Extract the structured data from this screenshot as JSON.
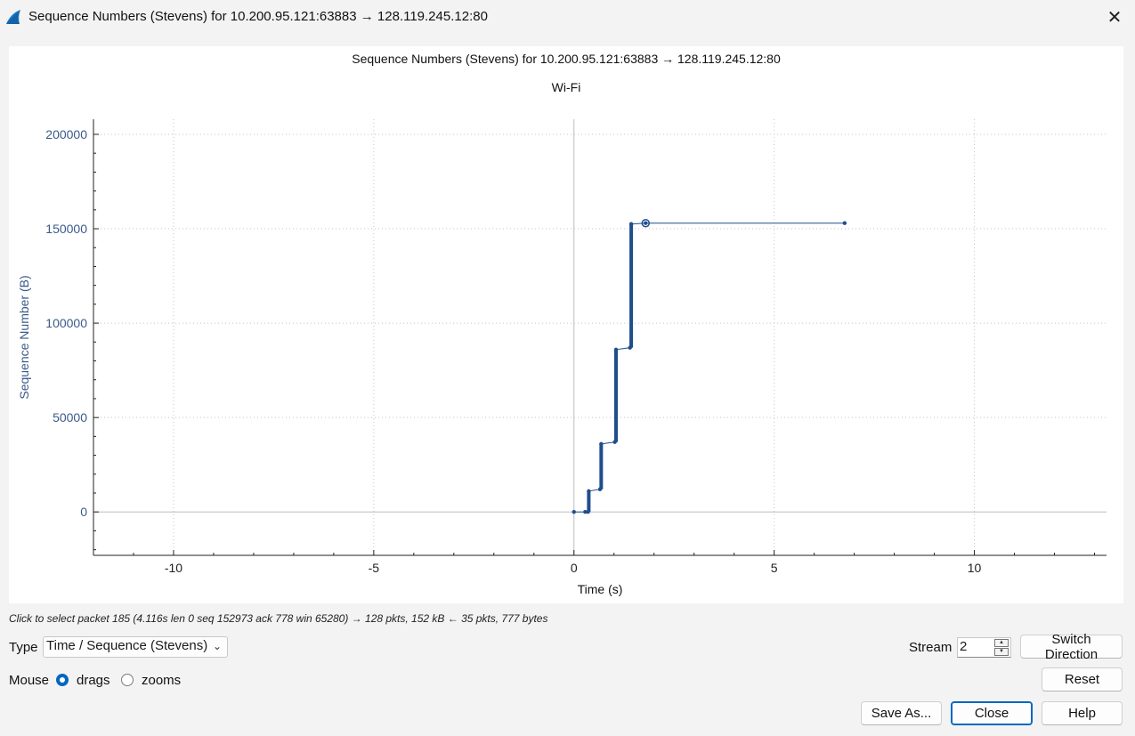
{
  "window": {
    "title": "Sequence Numbers (Stevens) for 10.200.95.121:63883 → 128.119.245.12:80",
    "close_glyph": "✕",
    "icon": "wireshark-fin-icon"
  },
  "plot": {
    "title": "Sequence Numbers (Stevens) for 10.200.95.121:63883 → 128.119.245.12:80",
    "subtitle": "Wi-Fi"
  },
  "chart_data": {
    "type": "scatter",
    "title": "Sequence Numbers (Stevens) for 10.200.95.121:63883 → 128.119.245.12:80",
    "subtitle": "Wi-Fi",
    "xlabel": "Time (s)",
    "ylabel": "Sequence Number (B)",
    "xlim": [
      -12,
      13.3
    ],
    "ylim": [
      -23000,
      208000
    ],
    "xticks": [
      -10,
      -5,
      0,
      5,
      10
    ],
    "xtick_labels": [
      "-10",
      "-5",
      "0",
      "5",
      "10"
    ],
    "yticks": [
      0,
      50000,
      100000,
      150000,
      200000
    ],
    "ytick_labels": [
      "0",
      "50000",
      "100000",
      "150000",
      "200000"
    ],
    "grid": true,
    "series": [
      {
        "color": "#1f4e8c",
        "x": [
          0,
          0.28,
          0.35,
          0.37,
          0.65,
          0.68,
          1.02,
          1.05,
          1.4,
          1.43,
          1.79,
          6.76
        ],
        "y": [
          0,
          0,
          0,
          11000,
          12000,
          36000,
          37000,
          86000,
          87000,
          152500,
          152973,
          152973
        ]
      }
    ],
    "segments": [
      {
        "x": 0.37,
        "y0": 0,
        "y1": 11000
      },
      {
        "x": 0.68,
        "y0": 12000,
        "y1": 36000
      },
      {
        "x": 1.05,
        "y0": 37000,
        "y1": 86000
      },
      {
        "x": 1.43,
        "y0": 87000,
        "y1": 152500
      }
    ],
    "selected_point": {
      "x": 1.79,
      "y": 152973
    }
  },
  "status": {
    "text": "Click to select packet 185 (4.116s len 0 seq 152973 ack 778 win 65280) → 128 pkts, 152 kB ← 35 pkts, 777 bytes"
  },
  "controls": {
    "type_label": "Type",
    "type_value": "Time / Sequence (Stevens)",
    "mouse_label": "Mouse",
    "drags_label": "drags",
    "zooms_label": "zooms",
    "stream_label": "Stream",
    "stream_value": "2",
    "switch_direction": "Switch Direction",
    "reset": "Reset",
    "save_as": "Save As...",
    "close": "Close",
    "help": "Help"
  }
}
